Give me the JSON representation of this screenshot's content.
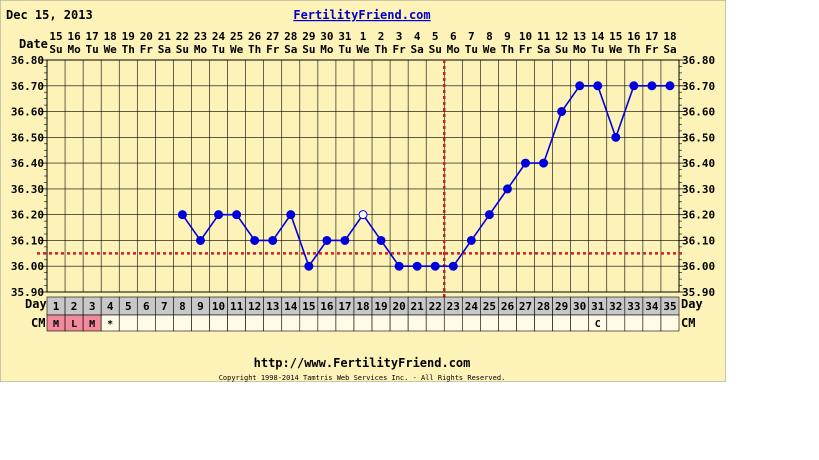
{
  "header": {
    "date": "Dec 15, 2013",
    "site_title": "FertilityFriend.com",
    "date_row_label": "Date"
  },
  "footer": {
    "url": "http://www.FertilityFriend.com",
    "copyright": "Copyright 1998-2014 Tamtris Web Services Inc. - All Rights Reserved."
  },
  "rows": {
    "day_label": "Day",
    "cm_label": "CM"
  },
  "colors": {
    "background": "#fdf3b8",
    "series": "#0000dd",
    "coverline": "#cc2222",
    "ovulation_line": "#cc2222",
    "menses_cell": "#f08a9c",
    "day_row": "#c8c8c8",
    "title_link": "#0000cc"
  },
  "chart_data": {
    "type": "line",
    "title": "",
    "xlabel": "Day",
    "ylabel": "",
    "ylim": [
      35.9,
      36.8
    ],
    "yticks": [
      "35.90",
      "36.00",
      "36.10",
      "36.20",
      "36.30",
      "36.40",
      "36.50",
      "36.60",
      "36.70",
      "36.80"
    ],
    "cycle_days": [
      "1",
      "2",
      "3",
      "4",
      "5",
      "6",
      "7",
      "8",
      "9",
      "10",
      "11",
      "12",
      "13",
      "14",
      "15",
      "16",
      "17",
      "18",
      "19",
      "20",
      "21",
      "22",
      "23",
      "24",
      "25",
      "26",
      "27",
      "28",
      "29",
      "30",
      "31",
      "32",
      "33",
      "34",
      "35"
    ],
    "dates": [
      "15",
      "16",
      "17",
      "18",
      "19",
      "20",
      "21",
      "22",
      "23",
      "24",
      "25",
      "26",
      "27",
      "28",
      "29",
      "30",
      "31",
      "1",
      "2",
      "3",
      "4",
      "5",
      "6",
      "7",
      "8",
      "9",
      "10",
      "11",
      "12",
      "13",
      "14",
      "15",
      "16",
      "17",
      "18"
    ],
    "weekdays": [
      "Su",
      "Mo",
      "Tu",
      "We",
      "Th",
      "Fr",
      "Sa",
      "Su",
      "Mo",
      "Tu",
      "We",
      "Th",
      "Fr",
      "Sa",
      "Su",
      "Mo",
      "Tu",
      "We",
      "Th",
      "Fr",
      "Sa",
      "Su",
      "Mo",
      "Tu",
      "We",
      "Th",
      "Fr",
      "Sa",
      "Su",
      "Mo",
      "Tu",
      "We",
      "Th",
      "Fr",
      "Sa"
    ],
    "cervical_mucus": [
      "M",
      "L",
      "M",
      "*",
      "",
      "",
      "",
      "",
      "",
      "",
      "",
      "",
      "",
      "",
      "",
      "",
      "",
      "",
      "",
      "",
      "",
      "",
      "",
      "",
      "",
      "",
      "",
      "",
      "",
      "",
      "C",
      "",
      "",
      "",
      ""
    ],
    "menses_days": [
      1,
      2,
      3
    ],
    "series": [
      {
        "x": [
          8,
          9,
          10,
          11,
          12,
          13,
          14,
          15,
          16,
          17,
          18,
          19,
          20,
          21,
          22,
          23,
          24,
          25,
          26,
          27,
          28,
          29,
          30,
          31,
          32,
          33,
          34,
          35
        ],
        "values": [
          36.2,
          36.1,
          36.2,
          36.2,
          36.1,
          36.1,
          36.2,
          36.0,
          36.1,
          36.1,
          36.2,
          36.1,
          36.0,
          36.0,
          36.0,
          36.0,
          36.1,
          36.2,
          36.3,
          36.4,
          36.4,
          36.6,
          36.7,
          36.7,
          36.5,
          36.7,
          36.7,
          36.7
        ],
        "open_point_days": [
          18
        ]
      }
    ],
    "coverline": 36.05,
    "ovulation_day": 23,
    "grid": true
  }
}
